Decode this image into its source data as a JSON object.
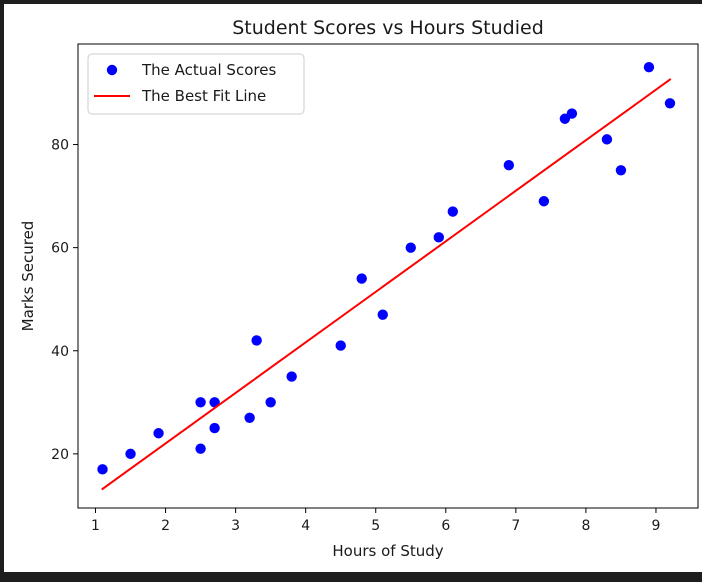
{
  "chart_data": {
    "type": "scatter",
    "title": "Student Scores vs Hours Studied",
    "xlabel": "Hours of Study",
    "ylabel": "Marks Secured",
    "xlim": [
      0.75,
      9.6
    ],
    "ylim": [
      9.5,
      99.5
    ],
    "xticks": [
      1,
      2,
      3,
      4,
      5,
      6,
      7,
      8,
      9
    ],
    "yticks": [
      20,
      40,
      60,
      80
    ],
    "grid": false,
    "legend_position": "top-left",
    "series": [
      {
        "name": "The Actual Scores",
        "kind": "scatter",
        "color": "#0000ff",
        "points": [
          {
            "x": 1.1,
            "y": 17
          },
          {
            "x": 1.5,
            "y": 20
          },
          {
            "x": 1.9,
            "y": 24
          },
          {
            "x": 2.5,
            "y": 21
          },
          {
            "x": 2.5,
            "y": 30
          },
          {
            "x": 2.7,
            "y": 25
          },
          {
            "x": 2.7,
            "y": 30
          },
          {
            "x": 3.2,
            "y": 27
          },
          {
            "x": 3.3,
            "y": 42
          },
          {
            "x": 3.5,
            "y": 30
          },
          {
            "x": 3.8,
            "y": 35
          },
          {
            "x": 4.5,
            "y": 41
          },
          {
            "x": 4.8,
            "y": 54
          },
          {
            "x": 5.1,
            "y": 47
          },
          {
            "x": 5.5,
            "y": 60
          },
          {
            "x": 5.9,
            "y": 62
          },
          {
            "x": 6.1,
            "y": 67
          },
          {
            "x": 6.9,
            "y": 76
          },
          {
            "x": 7.4,
            "y": 69
          },
          {
            "x": 7.7,
            "y": 85
          },
          {
            "x": 7.8,
            "y": 86
          },
          {
            "x": 8.3,
            "y": 81
          },
          {
            "x": 8.5,
            "y": 75
          },
          {
            "x": 8.9,
            "y": 95
          },
          {
            "x": 9.2,
            "y": 88
          }
        ]
      },
      {
        "name": "The Best Fit Line",
        "kind": "line",
        "color": "#ff0000",
        "points": [
          {
            "x": 1.1,
            "y": 13.2
          },
          {
            "x": 9.2,
            "y": 92.6
          }
        ]
      }
    ]
  }
}
